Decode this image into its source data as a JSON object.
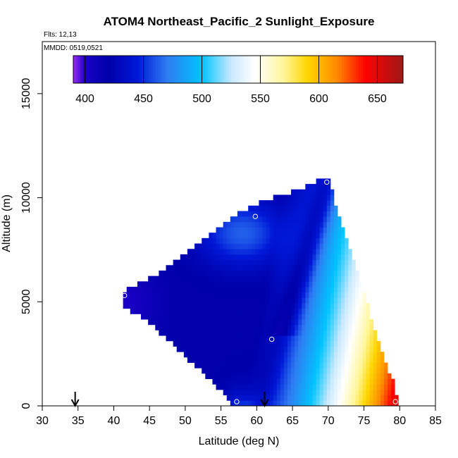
{
  "chart_data": {
    "type": "heatmap",
    "title": "ATOM4 Northeast_Pacific_2 Sunlight_Exposure",
    "subtitle_flights": "Flts: 12,13",
    "subtitle_dates": "MMDD: 0519,0521",
    "xlabel": "Latitude (deg N)",
    "ylabel": "Altitude (m)",
    "xlim": [
      30,
      85
    ],
    "ylim": [
      0,
      17500
    ],
    "xticks": [
      "30",
      "35",
      "40",
      "45",
      "50",
      "55",
      "60",
      "65",
      "70",
      "75",
      "80",
      "85"
    ],
    "yticks": [
      "0",
      "5000",
      "10000",
      "15000"
    ],
    "colorbar": {
      "min": 390,
      "max": 672,
      "ticks": [
        "400",
        "450",
        "500",
        "550",
        "600",
        "650"
      ],
      "stops": [
        {
          "v": 390,
          "c": "#9a2cf0"
        },
        {
          "v": 400,
          "c": "#1c00c8"
        },
        {
          "v": 420,
          "c": "#0000aa"
        },
        {
          "v": 445,
          "c": "#0018d8"
        },
        {
          "v": 470,
          "c": "#2f7cf2"
        },
        {
          "v": 500,
          "c": "#00c4ff"
        },
        {
          "v": 525,
          "c": "#c8e8ff"
        },
        {
          "v": 545,
          "c": "#ffffff"
        },
        {
          "v": 570,
          "c": "#fff59a"
        },
        {
          "v": 590,
          "c": "#ffd600"
        },
        {
          "v": 615,
          "c": "#ff8c00"
        },
        {
          "v": 640,
          "c": "#ff0000"
        },
        {
          "v": 672,
          "c": "#a01818"
        }
      ]
    },
    "field": {
      "description_points": [
        {
          "lat": 41.5,
          "alt": 5300,
          "v": 392
        },
        {
          "lat": 50,
          "alt": 4500,
          "v": 418
        },
        {
          "lat": 58,
          "alt": 4000,
          "v": 420
        },
        {
          "lat": 62,
          "alt": 3200,
          "v": 470
        },
        {
          "lat": 69.8,
          "alt": 10700,
          "v": 418
        },
        {
          "lat": 60,
          "alt": 9100,
          "v": 480
        },
        {
          "lat": 57.2,
          "alt": 200,
          "v": 475
        },
        {
          "lat": 79.3,
          "alt": 200,
          "v": 655
        }
      ]
    },
    "markers": [
      {
        "lat": 41.5,
        "alt": 5300
      },
      {
        "lat": 59.8,
        "alt": 9100
      },
      {
        "lat": 69.8,
        "alt": 10750
      },
      {
        "lat": 62.1,
        "alt": 3200
      },
      {
        "lat": 57.2,
        "alt": 200
      },
      {
        "lat": 79.4,
        "alt": 200
      }
    ],
    "arrows": [
      {
        "lat": 34.6
      },
      {
        "lat": 61.1
      }
    ]
  }
}
